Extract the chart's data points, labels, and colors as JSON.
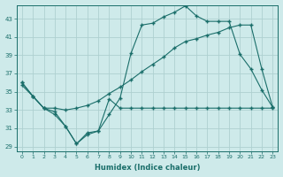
{
  "xlabel": "Humidex (Indice chaleur)",
  "bg_color": "#ceeaea",
  "grid_color": "#aed0d0",
  "line_color": "#1a6e6a",
  "xlim": [
    -0.5,
    23.5
  ],
  "ylim": [
    28.5,
    44.5
  ],
  "yticks": [
    29,
    31,
    33,
    35,
    37,
    39,
    41,
    43
  ],
  "xticks": [
    0,
    1,
    2,
    3,
    4,
    5,
    6,
    7,
    8,
    9,
    10,
    11,
    12,
    13,
    14,
    15,
    16,
    17,
    18,
    19,
    20,
    21,
    22,
    23
  ],
  "series1_x": [
    0,
    1,
    2,
    3,
    4,
    5,
    6,
    7,
    8,
    9,
    10,
    11,
    12,
    13,
    14,
    15,
    16,
    17,
    18,
    19,
    20,
    21,
    22,
    23
  ],
  "series1_y": [
    36.0,
    34.5,
    33.2,
    32.8,
    31.2,
    29.3,
    30.3,
    30.7,
    32.5,
    34.3,
    39.2,
    42.3,
    42.5,
    43.2,
    43.7,
    44.4,
    43.3,
    42.7,
    42.7,
    42.7,
    39.1,
    37.5,
    35.2,
    33.3
  ],
  "series2_x": [
    0,
    1,
    2,
    3,
    4,
    5,
    6,
    7,
    8,
    9,
    10,
    11,
    12,
    13,
    14,
    15,
    16,
    17,
    18,
    19,
    20,
    21,
    22,
    23
  ],
  "series2_y": [
    36.0,
    34.5,
    33.2,
    32.5,
    31.2,
    29.3,
    30.5,
    30.7,
    34.2,
    33.2,
    33.2,
    33.2,
    33.2,
    33.2,
    33.2,
    33.2,
    33.2,
    33.2,
    33.2,
    33.2,
    33.2,
    33.2,
    33.2,
    33.2
  ],
  "series3_x": [
    0,
    1,
    2,
    3,
    4,
    5,
    6,
    7,
    8,
    9,
    10,
    11,
    12,
    13,
    14,
    15,
    16,
    17,
    18,
    19,
    20,
    21,
    22,
    23
  ],
  "series3_y": [
    35.7,
    34.5,
    33.2,
    33.2,
    33.0,
    33.2,
    33.5,
    34.0,
    34.8,
    35.5,
    36.3,
    37.2,
    38.0,
    38.8,
    39.8,
    40.5,
    40.8,
    41.2,
    41.5,
    42.0,
    42.3,
    42.3,
    37.5,
    33.3
  ]
}
